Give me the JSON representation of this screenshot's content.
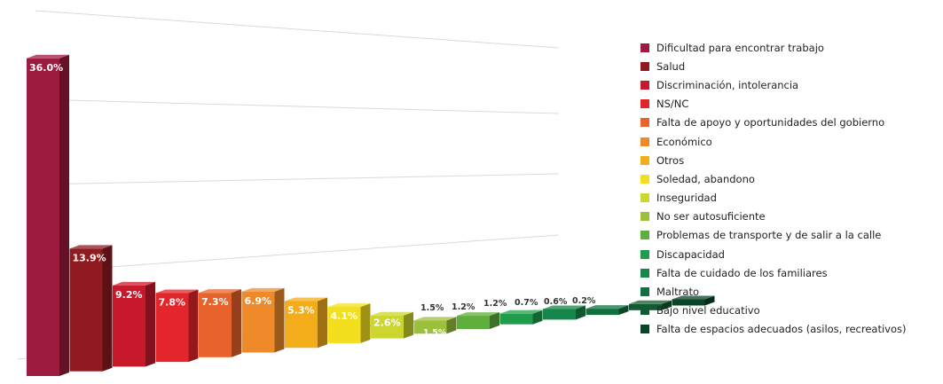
{
  "chart_data": {
    "type": "bar",
    "title": "",
    "xlabel": "",
    "ylabel": "",
    "ylim": [
      0,
      40
    ],
    "grid": true,
    "legend_position": "right",
    "categories": [
      "Dificultad para encontrar trabajo",
      "Salud",
      "Discriminación, intolerancia",
      "NS/NC",
      "Falta de apoyo y oportunidades del gobierno",
      "Económico",
      "Otros",
      "Soledad, abandono",
      "Inseguridad",
      "No ser autosuficiente",
      "Problemas de transporte y de salir a la calle",
      "Discapacidad",
      "Falta de cuidado de los familiares",
      "Maltrato",
      "Bajo nivel educativo",
      "Falta de espacios adecuados (asilos, recreativos)"
    ],
    "values": [
      36.0,
      13.9,
      9.2,
      7.8,
      7.3,
      6.9,
      5.3,
      4.1,
      2.6,
      1.5,
      1.5,
      1.2,
      1.2,
      0.7,
      0.6,
      0.2
    ],
    "labels": [
      "36.0%",
      "13.9%",
      "9.2%",
      "7.8%",
      "7.3%",
      "6.9%",
      "5.3%",
      "4.1%",
      "2.6%",
      "1.5%",
      "1.5%",
      "1.2%",
      "1.2%",
      "0.7%",
      "0.6%",
      "0.2%"
    ],
    "colors": [
      "#9c1b3e",
      "#8f1a1f",
      "#c8182c",
      "#e3262b",
      "#e8632b",
      "#ef8a2a",
      "#f4ad1a",
      "#f3df1e",
      "#cbd62e",
      "#9cc03b",
      "#5fae3c",
      "#1f9d4b",
      "#16864a",
      "#12703f",
      "#0f5c33",
      "#0b4528"
    ]
  }
}
